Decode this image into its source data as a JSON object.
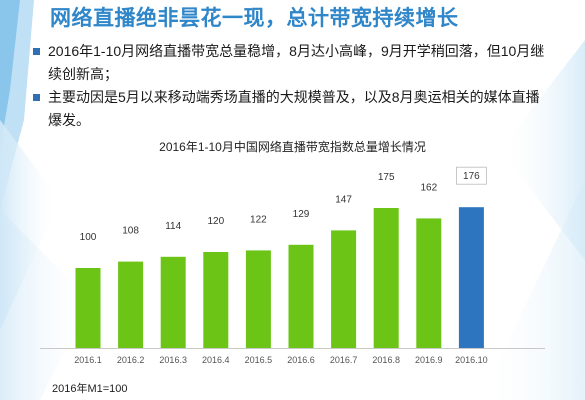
{
  "page": {
    "title": "网络直播绝非昙花一现，总计带宽持续增长",
    "bullets": [
      "2016年1-10月网络直播带宽总量稳增，8月达小高峰，9月开学稍回落，但10月继续创新高；",
      "主要动因是5月以来移动端秀场直播的大规模普及，以及8月奥运相关的媒体直播爆发。"
    ],
    "footnote": "2016年M1=100"
  },
  "colors": {
    "title": "#2f86c9",
    "bar_green": "#6cc417",
    "bar_highlight": "#2e75bf",
    "bullet": "#2f6fb3"
  },
  "chart_data": {
    "type": "bar",
    "title": "2016年1-10月中国网络直播带宽指数总量增长情况",
    "categories": [
      "2016.1",
      "2016.2",
      "2016.3",
      "2016.4",
      "2016.5",
      "2016.6",
      "2016.7",
      "2016.8",
      "2016.9",
      "2016.10"
    ],
    "values": [
      100,
      108,
      114,
      120,
      122,
      129,
      147,
      175,
      162,
      176
    ],
    "highlight_index": 9,
    "ylim": [
      0,
      180
    ],
    "grid": false,
    "xlabel": "",
    "ylabel": ""
  }
}
